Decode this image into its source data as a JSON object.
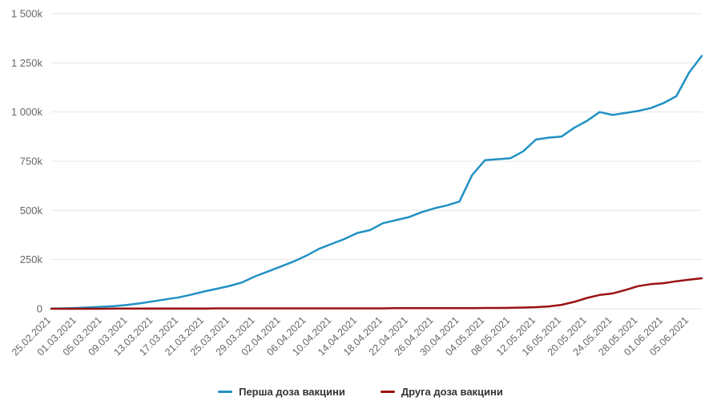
{
  "chart_data": {
    "type": "line",
    "title": "",
    "xlabel": "",
    "ylabel": "",
    "y_unit": "k (thousands of doses)",
    "ylim": [
      0,
      1500
    ],
    "grid": "horizontal",
    "legend_position": "bottom",
    "y_ticks": [
      0,
      250,
      500,
      750,
      1000,
      1250,
      1500
    ],
    "y_tick_labels": [
      "0",
      "250k",
      "500k",
      "750k",
      "1 000k",
      "1 250k",
      "1 500k"
    ],
    "x_unit": "days since 25.02.2021",
    "x": [
      0,
      2,
      4,
      6,
      8,
      10,
      12,
      14,
      16,
      18,
      20,
      22,
      24,
      26,
      28,
      30,
      32,
      34,
      36,
      38,
      40,
      42,
      44,
      46,
      48,
      50,
      52,
      54,
      56,
      58,
      60,
      62,
      64,
      66,
      68,
      70,
      72,
      74,
      76,
      78,
      80,
      82,
      84,
      86,
      88,
      90,
      92,
      94,
      96,
      98,
      100,
      102
    ],
    "x_tick_positions": [
      0,
      4,
      8,
      12,
      16,
      20,
      24,
      28,
      32,
      36,
      40,
      44,
      48,
      52,
      56,
      60,
      64,
      68,
      72,
      76,
      80,
      84,
      88,
      92,
      96,
      100
    ],
    "x_tick_labels": [
      "25.02.2021",
      "01.03.2021",
      "05.03.2021",
      "09.03.2021",
      "13.03.2021",
      "17.03.2021",
      "21.03.2021",
      "25.03.2021",
      "29.03.2021",
      "02.04.2021",
      "06.04.2021",
      "10.04.2021",
      "14.04.2021",
      "18.04.2021",
      "22.04.2021",
      "26.04.2021",
      "30.04.2021",
      "04.05.2021",
      "08.05.2021",
      "12.05.2021",
      "16.05.2021",
      "20.05.2021",
      "24.05.2021",
      "28.05.2021",
      "01.06.2021",
      "05.06.2021"
    ],
    "series": [
      {
        "name": "Перша доза вакцини",
        "color": "#2191c3",
        "values": [
          1,
          2,
          4,
          7,
          10,
          14,
          20,
          28,
          38,
          48,
          58,
          72,
          88,
          102,
          116,
          135,
          165,
          190,
          215,
          240,
          270,
          305,
          330,
          355,
          385,
          400,
          435,
          450,
          465,
          490,
          510,
          525,
          545,
          680,
          755,
          760,
          765,
          800,
          860,
          870,
          875,
          920,
          955,
          1000,
          985,
          995,
          1005,
          1020,
          1045,
          1080,
          1200,
          1285
        ]
      },
      {
        "name": "Друга доза вакцини",
        "color": "#9a1212",
        "values": [
          0,
          0,
          0,
          0,
          0,
          1,
          1,
          1,
          1,
          1,
          1,
          1,
          1,
          2,
          2,
          2,
          2,
          2,
          2,
          2,
          2,
          2,
          2,
          2,
          2,
          2,
          2,
          3,
          3,
          3,
          3,
          3,
          3,
          3,
          4,
          4,
          5,
          6,
          8,
          12,
          20,
          35,
          55,
          70,
          78,
          95,
          115,
          125,
          130,
          140,
          148,
          155
        ]
      }
    ]
  },
  "colors": {
    "gridline": "#e6e6e6",
    "axis_text": "#666666",
    "legend_text": "#333333",
    "background": "#ffffff"
  }
}
